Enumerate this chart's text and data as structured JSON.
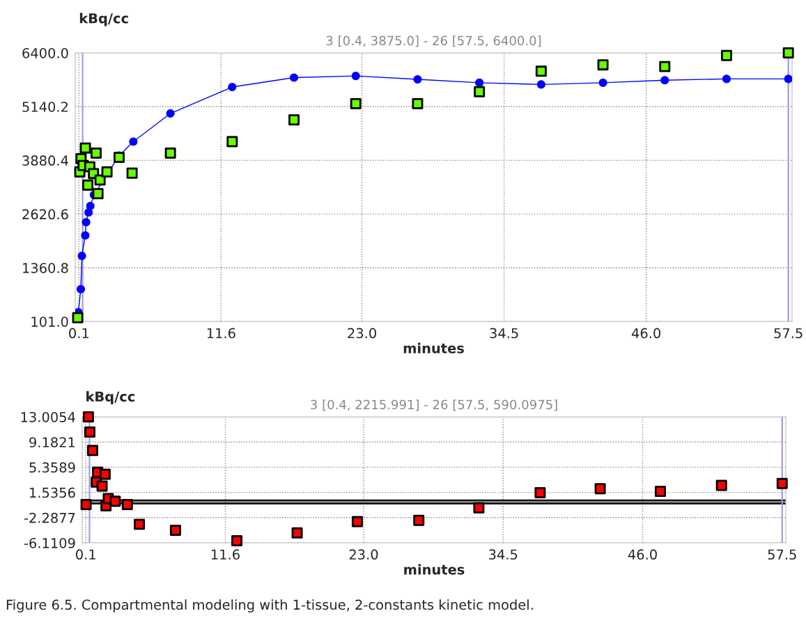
{
  "chart_data": [
    {
      "type": "scatter",
      "subtitle": "3 [0.4, 3875.0] - 26 [57.5, 6400.0]",
      "xlabel": "minutes",
      "ylabel": "kBq/cc",
      "xlim": [
        -0.2,
        57.8
      ],
      "ylim": [
        101.0,
        6400.0
      ],
      "xticks": [
        {
          "value": 0.1,
          "label": "0.1"
        },
        {
          "value": 11.6,
          "label": "11.6"
        },
        {
          "value": 23,
          "label": "23.0"
        },
        {
          "value": 34.5,
          "label": "34.5"
        },
        {
          "value": 46,
          "label": "46.0"
        },
        {
          "value": 57.5,
          "label": "57.5"
        }
      ],
      "yticks": [
        {
          "value": 101,
          "label": "101.0"
        },
        {
          "value": 1360.8,
          "label": "1360.8"
        },
        {
          "value": 2620.6,
          "label": "2620.6"
        },
        {
          "value": 3880.4,
          "label": "3880.4"
        },
        {
          "value": 5140.2,
          "label": "5140.2"
        },
        {
          "value": 6400,
          "label": "6400.0"
        }
      ],
      "grid": true,
      "line_style": "solid",
      "ref_lines": [
        {
          "axis": "x",
          "value": 0.4,
          "color": "#9999e6"
        },
        {
          "axis": "x",
          "value": 57.5,
          "color": "#9999e6"
        }
      ],
      "series": [
        {
          "type": "line",
          "marker": "circle",
          "color": "#0000ff",
          "x": [
            0.05,
            0.25,
            0.34,
            0.61,
            0.68,
            0.88,
            1.02,
            1.31,
            1.63,
            3.35,
            4.5,
            7.5,
            12.5,
            17.5,
            22.5,
            27.5,
            32.5,
            37.5,
            42.5,
            47.5,
            52.5,
            57.5
          ],
          "values": [
            320,
            860,
            1640,
            2120,
            2430,
            2660,
            2810,
            3070,
            null,
            3990,
            4320,
            4980,
            5600,
            5820,
            5860,
            5780,
            5700,
            5660,
            5700,
            5760,
            5790,
            5790
          ]
        },
        {
          "marker": "square",
          "color": "#66ff00",
          "x": [
            0.0,
            0.17,
            0.27,
            0.44,
            0.62,
            0.82,
            0.98,
            1.28,
            1.49,
            1.64,
            1.81,
            2.37,
            3.35,
            4.4,
            7.5,
            12.5,
            17.5,
            22.5,
            27.5,
            32.5,
            37.5,
            42.5,
            47.5,
            52.5,
            57.5
          ],
          "values": [
            190,
            3610,
            3920,
            3760,
            4170,
            3300,
            3730,
            3570,
            4050,
            3100,
            3420,
            3610,
            3950,
            3580,
            4050,
            4320,
            4830,
            5210,
            5210,
            5490,
            5970,
            6120,
            6080,
            6340,
            6400
          ]
        }
      ]
    },
    {
      "type": "scatter",
      "subtitle": "3 [0.4, 2215.991] - 26 [57.5, 590.0975]",
      "xlabel": "minutes",
      "ylabel": "kBq/cc",
      "xlim": [
        -0.2,
        57.8
      ],
      "ylim": [
        -6.1109,
        13.0054
      ],
      "xticks": [
        {
          "value": 0.1,
          "label": "0.1"
        },
        {
          "value": 11.6,
          "label": "11.6"
        },
        {
          "value": 23,
          "label": "23.0"
        },
        {
          "value": 34.5,
          "label": "34.5"
        },
        {
          "value": 46,
          "label": "46.0"
        },
        {
          "value": 57.5,
          "label": "57.5"
        }
      ],
      "yticks": [
        -6.1109,
        -2.2877,
        1.5356,
        5.3589,
        9.1821,
        13.0054
      ],
      "grid": true,
      "ref_lines": [
        {
          "axis": "y",
          "value": 0.1,
          "color": "#000000"
        },
        {
          "axis": "x",
          "value": 0.4,
          "color": "#9999e6"
        },
        {
          "axis": "x",
          "value": 57.5,
          "color": "#9999e6"
        }
      ],
      "annotations": [
        "Figure 6.5. Compartmental modeling with 1-tissue, 2-constants kinetic model."
      ],
      "series": [
        {
          "marker": "square",
          "color": "#ff0000",
          "x": [
            0.12,
            0.31,
            0.43,
            0.66,
            0.96,
            1.07,
            1.44,
            1.69,
            1.76,
            1.95,
            2.52,
            3.52,
            4.51,
            7.49,
            12.55,
            17.52,
            22.48,
            27.55,
            32.5,
            37.55,
            42.5,
            47.46,
            52.5,
            57.5
          ],
          "values": [
            -0.3,
            13.0,
            10.7,
            7.9,
            3.1,
            4.6,
            2.5,
            4.3,
            -0.5,
            0.6,
            0.2,
            -0.3,
            -3.3,
            -4.2,
            -5.8,
            -4.6,
            -2.9,
            -2.7,
            -0.8,
            1.5,
            2.1,
            1.7,
            2.6,
            2.9
          ]
        }
      ]
    }
  ]
}
